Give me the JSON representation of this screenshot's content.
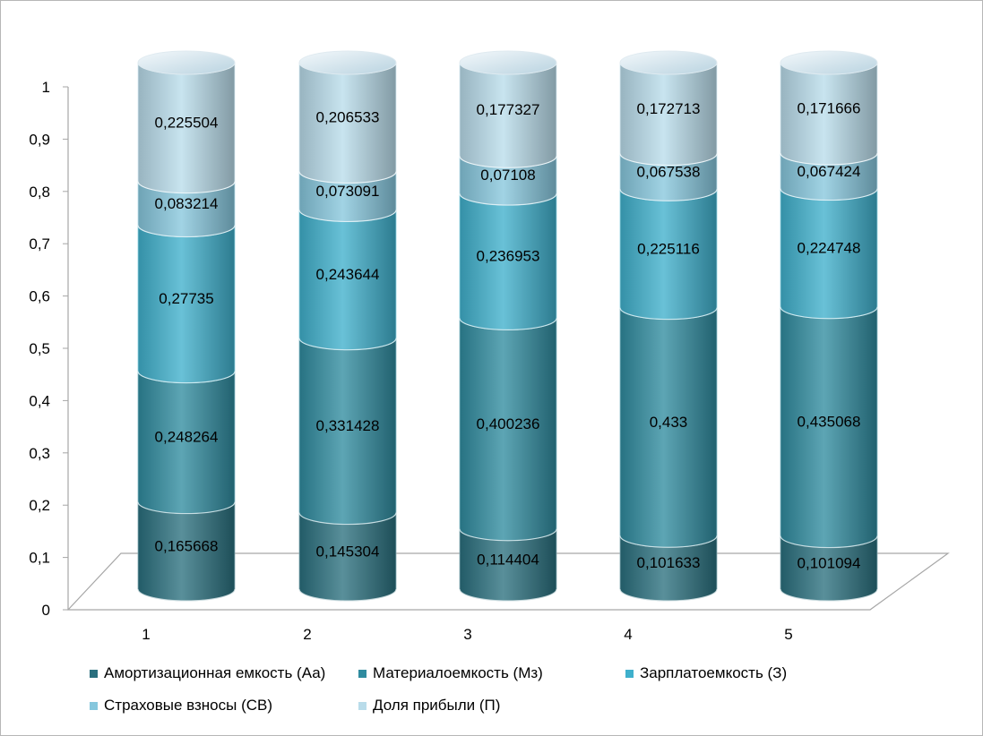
{
  "chart_data": {
    "type": "bar",
    "stacked": true,
    "style": "3d-cylinder",
    "title": "",
    "xlabel": "",
    "ylabel": "",
    "ylim": [
      0,
      1
    ],
    "yticks": [
      "0",
      "0,1",
      "0,2",
      "0,3",
      "0,4",
      "0,5",
      "0,6",
      "0,7",
      "0,8",
      "0,9",
      "1"
    ],
    "categories": [
      "1",
      "2",
      "3",
      "4",
      "5"
    ],
    "legend_position": "bottom",
    "series": [
      {
        "name": "Амортизационная емкость (Аа)",
        "color": "#2a6f7e",
        "values": [
          0.165668,
          0.145304,
          0.114404,
          0.101633,
          0.101094
        ],
        "labels": [
          "0,165668",
          "0,145304",
          "0,114404",
          "0,101633",
          "0,101094"
        ]
      },
      {
        "name": "Материалоемкость (Мз)",
        "color": "#2f8b9f",
        "values": [
          0.248264,
          0.331428,
          0.400236,
          0.433,
          0.435068
        ],
        "labels": [
          "0,248264",
          "0,331428",
          "0,400236",
          "0,433",
          "0,435068"
        ]
      },
      {
        "name": "Зарплатоемкость (З)",
        "color": "#3fb0cc",
        "values": [
          0.27735,
          0.243644,
          0.236953,
          0.225116,
          0.224748
        ],
        "labels": [
          "0,27735",
          "0,243644",
          "0,236953",
          "0,225116",
          "0,224748"
        ]
      },
      {
        "name": "Страховые взносы (СВ)",
        "color": "#86c7dd",
        "values": [
          0.083214,
          0.073091,
          0.07108,
          0.067538,
          0.067424
        ],
        "labels": [
          "0,083214",
          "0,073091",
          "0,07108",
          "0,067538",
          "0,067424"
        ]
      },
      {
        "name": "Доля прибыли (П)",
        "color": "#b9dcea",
        "values": [
          0.225504,
          0.206533,
          0.177327,
          0.172713,
          0.171666
        ],
        "labels": [
          "0,225504",
          "0,206533",
          "0,177327",
          "0,172713",
          "0,171666"
        ]
      }
    ]
  }
}
